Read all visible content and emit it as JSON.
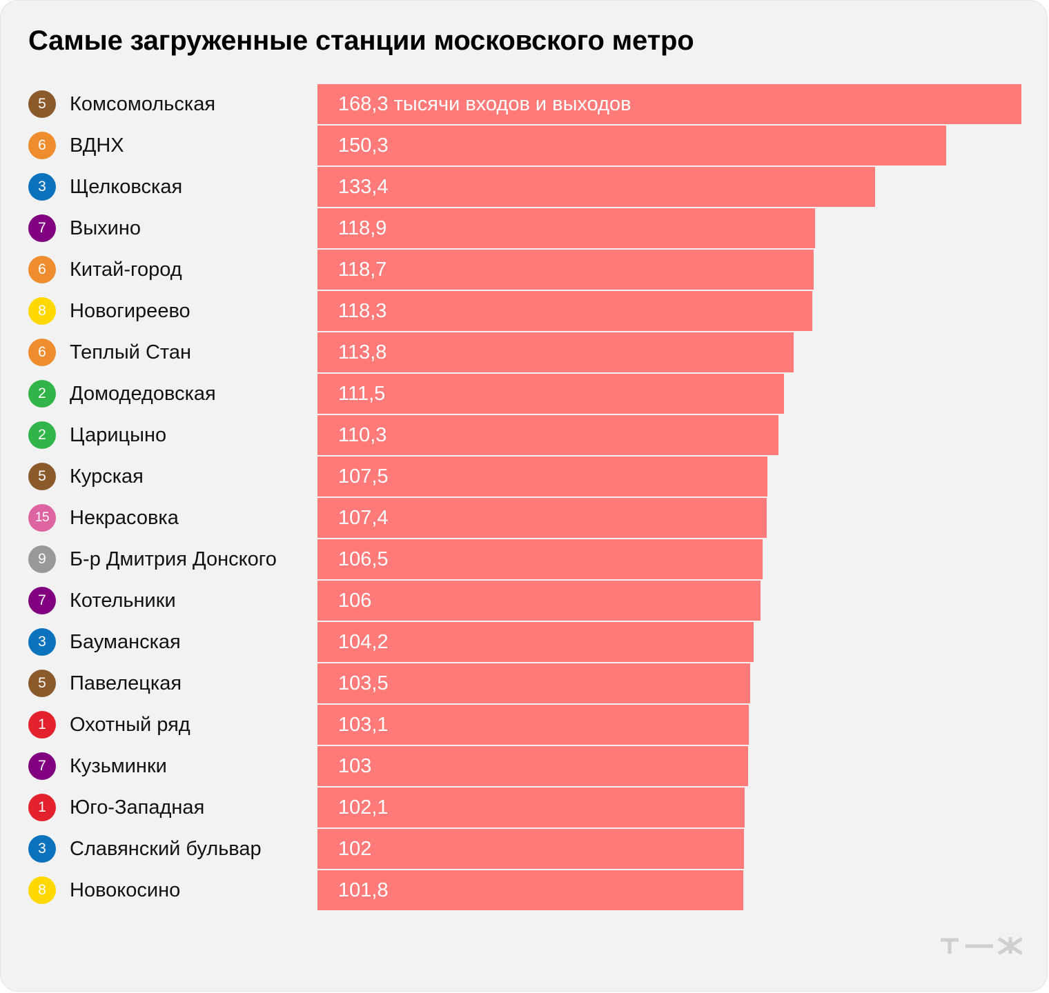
{
  "title": "Самые загруженные станции московского метро",
  "logo_text": "т—ж",
  "line_colors": {
    "1": "#e4222d",
    "2": "#31b44a",
    "3": "#0b72be",
    "5": "#8b5a2b",
    "6": "#ef8d2e",
    "7": "#800080",
    "8": "#ffd800",
    "9": "#999999",
    "15": "#de64a1"
  },
  "bar_color": "#ff7a78",
  "chart_data": {
    "type": "bar",
    "orientation": "horizontal",
    "title": "Самые загруженные станции московского метро",
    "unit_label": "тысячи входов и выходов",
    "xlim": [
      0,
      168.3
    ],
    "grid": false,
    "categories": [
      "Комсомольская",
      "ВДНХ",
      "Щелковская",
      "Выхино",
      "Китай-город",
      "Новогиреево",
      "Теплый Стан",
      "Домодедовская",
      "Царицыно",
      "Курская",
      "Некрасовка",
      "Б-р Дмитрия Донского",
      "Котельники",
      "Бауманская",
      "Павелецкая",
      "Охотный ряд",
      "Кузьминки",
      "Юго-Западная",
      "Славянский бульвар",
      "Новокосино"
    ],
    "lines": [
      "5",
      "6",
      "3",
      "7",
      "6",
      "8",
      "6",
      "2",
      "2",
      "5",
      "15",
      "9",
      "7",
      "3",
      "5",
      "1",
      "7",
      "1",
      "3",
      "8"
    ],
    "values": [
      168.3,
      150.3,
      133.4,
      118.9,
      118.7,
      118.3,
      113.8,
      111.5,
      110.3,
      107.5,
      107.4,
      106.5,
      106,
      104.2,
      103.5,
      103.1,
      103,
      102.1,
      102,
      101.8
    ],
    "value_labels": [
      "168,3 тысячи входов и выходов",
      "150,3",
      "133,4",
      "118,9",
      "118,7",
      "118,3",
      "113,8",
      "111,5",
      "110,3",
      "107,5",
      "107,4",
      "106,5",
      "106",
      "104,2",
      "103,5",
      "103,1",
      "103",
      "102,1",
      "102",
      "101,8"
    ]
  }
}
